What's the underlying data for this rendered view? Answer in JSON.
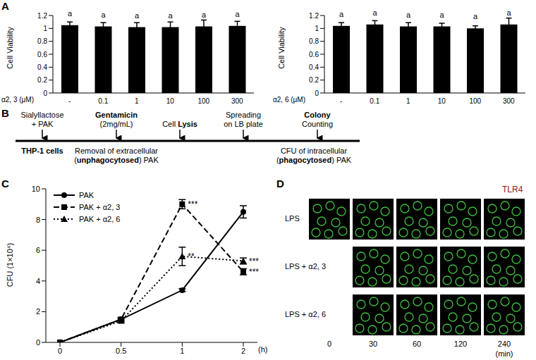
{
  "panel_labels": [
    "A",
    "B",
    "C",
    "D"
  ],
  "chart_data": [
    {
      "type": "bar",
      "y_label": "Cell Viability",
      "x_label": "α2, 3 (μM)",
      "categories": [
        "-",
        "0.1",
        "1",
        "10",
        "100",
        "300"
      ],
      "values": [
        1.05,
        1.03,
        1.02,
        1.02,
        1.03,
        1.04
      ],
      "errors": [
        0.05,
        0.06,
        0.07,
        0.08,
        0.1,
        0.07
      ],
      "annotations": [
        "a",
        "a",
        "a",
        "a",
        "a",
        "a"
      ],
      "color": "#000000",
      "ylim": [
        0,
        1.2
      ],
      "yticks": [
        0,
        0.2,
        0.4,
        0.6,
        0.8,
        1,
        1.2
      ]
    },
    {
      "type": "bar",
      "y_label": "Cell Viability",
      "x_label": "α2, 6 (μM)",
      "categories": [
        "-",
        "0.1",
        "1",
        "10",
        "100",
        "300"
      ],
      "values": [
        1.04,
        1.06,
        1.03,
        1.03,
        1.0,
        1.06
      ],
      "errors": [
        0.05,
        0.06,
        0.06,
        0.05,
        0.04,
        0.1
      ],
      "annotations": [
        "a",
        "a",
        "a",
        "a",
        "a",
        "a"
      ],
      "color": "#000000",
      "ylim": [
        0,
        1.2
      ],
      "yticks": [
        0,
        0.2,
        0.4,
        0.6,
        0.8,
        1,
        1.2
      ]
    },
    {
      "type": "line",
      "y_label": "CFU (1×10⁴)",
      "x_label": "(h)",
      "categories": [
        "0",
        "0.5",
        "1",
        "2"
      ],
      "ylim": [
        0,
        10
      ],
      "yticks": [
        0,
        2,
        4,
        6,
        8,
        10
      ],
      "legend": "top-left",
      "series": [
        {
          "name": "PAK",
          "color": "#000000",
          "marker": "circle",
          "line_style": "solid",
          "values": [
            0,
            1.5,
            3.4,
            8.5
          ],
          "errors": [
            0,
            0.1,
            0.1,
            0.4
          ]
        },
        {
          "name": "PAK + α2, 3",
          "color": "#000000",
          "marker": "square",
          "line_style": "dashed",
          "values": [
            0,
            1.5,
            9.0,
            4.6
          ],
          "errors": [
            0,
            0.1,
            0.3,
            0.2
          ],
          "annotations": [
            null,
            null,
            "***",
            "***"
          ]
        },
        {
          "name": "PAK + α2, 6",
          "color": "#000000",
          "marker": "triangle",
          "line_style": "dotted",
          "values": [
            0,
            1.4,
            5.6,
            5.3
          ],
          "errors": [
            0,
            0.1,
            0.6,
            0.2
          ],
          "annotations": [
            null,
            null,
            "**",
            "***"
          ]
        }
      ]
    }
  ],
  "diagram": {
    "top": [
      {
        "lines": [
          [
            {
              "text": "Sialyllactose"
            }
          ],
          [
            {
              "text": "+ PAK"
            }
          ]
        ]
      },
      {
        "lines": [
          [
            {
              "text": "Gentamicin",
              "bold": true
            }
          ],
          [
            {
              "text": "(2mg/mL)"
            }
          ]
        ]
      },
      {
        "lines": [
          [
            {
              "text": "Cell "
            },
            {
              "text": "Lysis",
              "bold": true
            }
          ]
        ]
      },
      {
        "lines": [
          [
            {
              "text": "Spreading"
            }
          ],
          [
            {
              "text": "on LB plate"
            }
          ]
        ]
      },
      {
        "lines": [
          [
            {
              "text": "Colony",
              "bold": true
            }
          ],
          [
            {
              "text": "Counting"
            }
          ]
        ]
      }
    ],
    "bottom": [
      {
        "lines": [
          [
            {
              "text": "THP-1 cells",
              "bold": true
            }
          ]
        ]
      },
      {
        "lines": [
          [
            {
              "text": "Removal of extracellular"
            }
          ],
          [
            {
              "text": "("
            },
            {
              "text": "unphagocytosed",
              "bold": true
            },
            {
              "text": ") PAK"
            }
          ]
        ]
      },
      {
        "lines": [
          [
            {
              "text": "CFU of intracellular"
            }
          ],
          [
            {
              "text": "("
            },
            {
              "text": "phagocytosed",
              "bold": true
            },
            {
              "text": ") PAK"
            }
          ]
        ]
      }
    ]
  },
  "images": {
    "title": "TLR4",
    "x_label": "(min)",
    "columns": [
      "0",
      "30",
      "60",
      "120",
      "240"
    ],
    "rows": [
      {
        "label": "LPS",
        "images": [
          true,
          true,
          true,
          true,
          true
        ]
      },
      {
        "label": "LPS + α2, 3",
        "images": [
          false,
          true,
          true,
          true,
          true
        ]
      },
      {
        "label": "LPS + α2, 6",
        "images": [
          false,
          true,
          true,
          true,
          true
        ]
      }
    ]
  }
}
